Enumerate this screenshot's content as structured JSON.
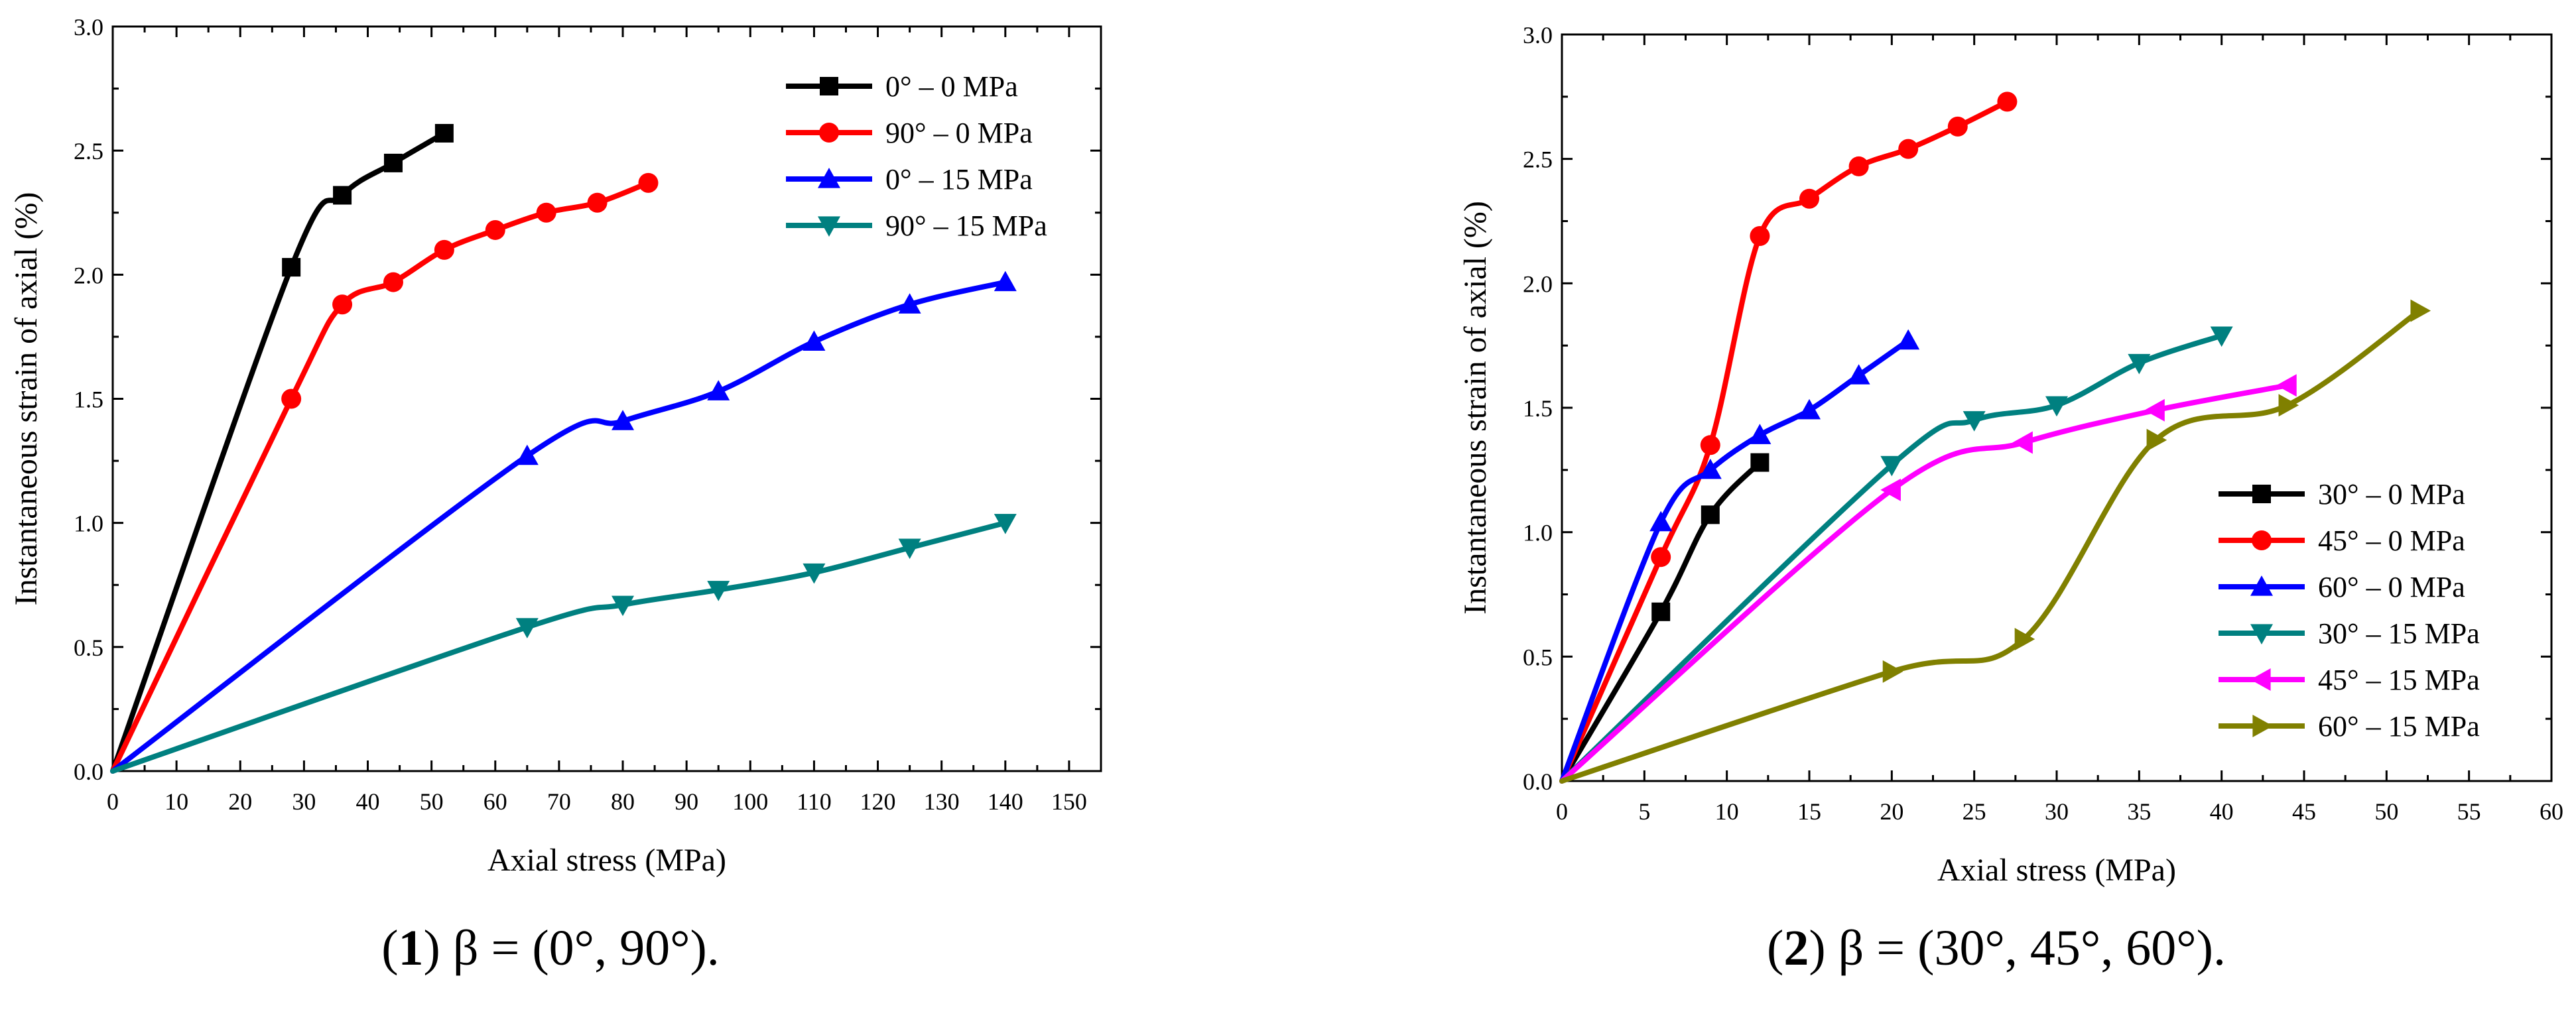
{
  "chart_data": [
    {
      "type": "line",
      "caption": {
        "panel": "1",
        "text": " β = (0°, 90°)."
      },
      "xlabel": "Axial stress (MPa)",
      "ylabel": "Instantaneous strain of axial (%)",
      "xlim": [
        0,
        155
      ],
      "ylim": [
        0,
        3.0
      ],
      "xticks": [
        0,
        10,
        20,
        30,
        40,
        50,
        60,
        70,
        80,
        90,
        100,
        110,
        120,
        130,
        140,
        150
      ],
      "yticks": [
        0.0,
        0.5,
        1.0,
        1.5,
        2.0,
        2.5,
        3.0
      ],
      "ytick_labels": [
        "0.0",
        "0.5",
        "1.0",
        "1.5",
        "2.0",
        "2.5",
        "3.0"
      ],
      "legend_position": "top-right",
      "series": [
        {
          "name": "0° – 0 MPa",
          "color": "#000000",
          "marker": "square",
          "x": [
            0,
            28,
            36,
            44,
            52
          ],
          "y": [
            0,
            2.03,
            2.32,
            2.45,
            2.57
          ]
        },
        {
          "name": "90° – 0 MPa",
          "color": "#ff0000",
          "marker": "circle",
          "x": [
            0,
            28,
            36,
            44,
            52,
            60,
            68,
            76,
            84
          ],
          "y": [
            0,
            1.5,
            1.88,
            1.97,
            2.1,
            2.18,
            2.25,
            2.29,
            2.37
          ]
        },
        {
          "name": "0° – 15 MPa",
          "color": "#0000ff",
          "marker": "triangle-up",
          "x": [
            0,
            65,
            80,
            95,
            110,
            125,
            140
          ],
          "y": [
            0,
            1.27,
            1.41,
            1.53,
            1.73,
            1.88,
            1.97
          ]
        },
        {
          "name": "90° – 15 MPa",
          "color": "#008080",
          "marker": "triangle-down",
          "x": [
            0,
            65,
            80,
            95,
            110,
            125,
            140
          ],
          "y": [
            0,
            0.58,
            0.67,
            0.73,
            0.8,
            0.9,
            1.0
          ]
        }
      ]
    },
    {
      "type": "line",
      "caption": {
        "panel": "2",
        "text": " β = (30°, 45°, 60°)."
      },
      "xlabel": "Axial stress (MPa)",
      "ylabel": "Instantaneous strain of axial (%)",
      "xlim": [
        0,
        60
      ],
      "ylim": [
        0,
        3.0
      ],
      "xticks": [
        0,
        5,
        10,
        15,
        20,
        25,
        30,
        35,
        40,
        45,
        50,
        55,
        60
      ],
      "yticks": [
        0.0,
        0.5,
        1.0,
        1.5,
        2.0,
        2.5,
        3.0
      ],
      "ytick_labels": [
        "0.0",
        "0.5",
        "1.0",
        "1.5",
        "2.0",
        "2.5",
        "3.0"
      ],
      "legend_position": "bottom-right",
      "series": [
        {
          "name": "30° – 0 MPa",
          "color": "#000000",
          "marker": "square",
          "x": [
            0,
            6,
            9,
            12
          ],
          "y": [
            0,
            0.68,
            1.07,
            1.28
          ]
        },
        {
          "name": "45° – 0 MPa",
          "color": "#ff0000",
          "marker": "circle",
          "x": [
            0,
            6,
            9,
            12,
            15,
            18,
            21,
            24,
            27
          ],
          "y": [
            0,
            0.9,
            1.35,
            2.19,
            2.34,
            2.47,
            2.54,
            2.63,
            2.73
          ]
        },
        {
          "name": "60° – 0 MPa",
          "color": "#0000ff",
          "marker": "triangle-up",
          "x": [
            0,
            6,
            9,
            12,
            15,
            18,
            21
          ],
          "y": [
            0,
            1.04,
            1.25,
            1.39,
            1.49,
            1.63,
            1.77
          ]
        },
        {
          "name": "30° – 15 MPa",
          "color": "#008080",
          "marker": "triangle-down",
          "x": [
            0,
            20,
            25,
            30,
            35,
            40
          ],
          "y": [
            0,
            1.27,
            1.45,
            1.51,
            1.68,
            1.79
          ]
        },
        {
          "name": "45° – 15 MPa",
          "color": "#ff00ff",
          "marker": "triangle-left",
          "x": [
            0,
            20,
            28,
            36,
            44
          ],
          "y": [
            0,
            1.17,
            1.36,
            1.49,
            1.59
          ]
        },
        {
          "name": "60° – 15 MPa",
          "color": "#808000",
          "marker": "triangle-right",
          "x": [
            0,
            20,
            28,
            36,
            44,
            52
          ],
          "y": [
            0,
            0.44,
            0.57,
            1.37,
            1.51,
            1.89
          ]
        }
      ]
    }
  ]
}
